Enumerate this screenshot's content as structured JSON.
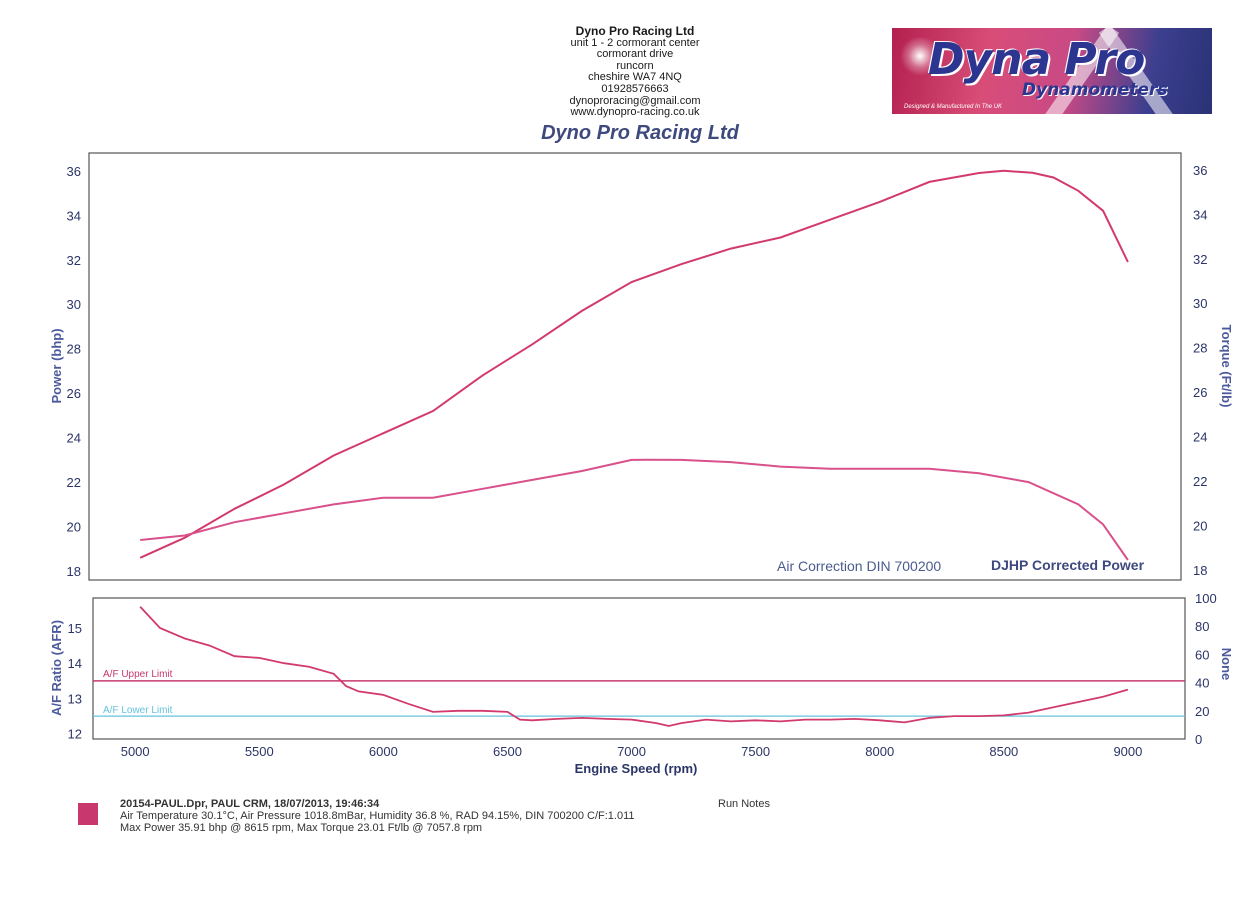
{
  "header": {
    "company": "Dyno Pro Racing Ltd",
    "address_lines": [
      "unit 1 - 2 cormorant center",
      "cormorant drive",
      "runcorn",
      "cheshire WA7 4NQ",
      "01928576663",
      "dynoproracing@gmail.com",
      "www.dynopro-racing.co.uk"
    ]
  },
  "logo": {
    "brand": "Dyna Pro",
    "subtitle": "Dynamometers",
    "tagline": "Designed & Manufactured In The UK"
  },
  "chart_title": "Dyno Pro Racing Ltd",
  "chart_data": [
    {
      "type": "line",
      "title": "Dyno Pro Racing Ltd",
      "xlabel": "Engine Speed (rpm)",
      "ylabel": "Power (bhp)",
      "y2label": "Torque (Ft/lb)",
      "xlim": [
        4830,
        9230
      ],
      "ylim": [
        17.6,
        36.8
      ],
      "y2lim": [
        17.6,
        36.8
      ],
      "y_ticks": [
        18,
        20,
        22,
        24,
        26,
        28,
        30,
        32,
        34,
        36
      ],
      "y2_ticks": [
        18,
        20,
        22,
        24,
        26,
        28,
        30,
        32,
        34,
        36
      ],
      "annotations": [
        "Air Correction DIN 700200",
        "DJHP Corrected Power"
      ],
      "series": [
        {
          "name": "Power",
          "color": "#d23a6c",
          "x": [
            5020,
            5200,
            5400,
            5600,
            5800,
            6000,
            6200,
            6400,
            6600,
            6800,
            7000,
            7200,
            7400,
            7600,
            7800,
            8000,
            8200,
            8400,
            8500,
            8615,
            8700,
            8800,
            8900,
            9000
          ],
          "y": [
            18.6,
            19.5,
            20.8,
            21.9,
            23.2,
            24.2,
            25.2,
            26.8,
            28.2,
            29.7,
            31.0,
            31.8,
            32.5,
            33.0,
            33.8,
            34.6,
            35.5,
            35.9,
            36.0,
            35.91,
            35.7,
            35.1,
            34.2,
            31.9
          ]
        },
        {
          "name": "Torque",
          "color": "#d9508a",
          "x": [
            5020,
            5200,
            5400,
            5600,
            5800,
            6000,
            6200,
            6400,
            6600,
            6800,
            7000,
            7058,
            7200,
            7400,
            7600,
            7800,
            8000,
            8200,
            8400,
            8600,
            8800,
            8900,
            9000
          ],
          "y": [
            19.4,
            19.6,
            20.2,
            20.6,
            21.0,
            21.3,
            21.3,
            21.7,
            22.1,
            22.5,
            23.0,
            23.01,
            23.0,
            22.9,
            22.7,
            22.6,
            22.6,
            22.6,
            22.4,
            22.0,
            21.0,
            20.1,
            18.5
          ]
        }
      ]
    },
    {
      "type": "line",
      "xlabel": "Engine Speed (rpm)",
      "ylabel": "A/F Ratio (AFR)",
      "y2label": "None",
      "xlim": [
        4830,
        9230
      ],
      "ylim": [
        11.85,
        15.85
      ],
      "y2lim": [
        0,
        100
      ],
      "x_ticks": [
        5000,
        5500,
        6000,
        6500,
        7000,
        7500,
        8000,
        8500,
        9000
      ],
      "y_ticks": [
        12,
        13,
        14,
        15
      ],
      "y2_ticks": [
        0,
        20,
        40,
        60,
        80,
        100
      ],
      "limits": [
        {
          "label": "A/F Upper Limit",
          "value": 13.5,
          "color": "#c8386e"
        },
        {
          "label": "A/F Lower Limit",
          "value": 12.5,
          "color": "#66c2dd"
        }
      ],
      "series": [
        {
          "name": "AFR",
          "color": "#d23a6c",
          "x": [
            5020,
            5100,
            5200,
            5300,
            5400,
            5500,
            5600,
            5700,
            5800,
            5850,
            5900,
            6000,
            6100,
            6200,
            6300,
            6400,
            6500,
            6550,
            6600,
            6700,
            6800,
            6900,
            7000,
            7100,
            7150,
            7200,
            7300,
            7400,
            7500,
            7600,
            7700,
            7800,
            7900,
            8000,
            8100,
            8200,
            8300,
            8400,
            8500,
            8600,
            8700,
            8800,
            8900,
            9000
          ],
          "y": [
            15.6,
            15.0,
            14.7,
            14.5,
            14.2,
            14.15,
            14.0,
            13.9,
            13.7,
            13.35,
            13.2,
            13.1,
            12.85,
            12.62,
            12.65,
            12.65,
            12.62,
            12.4,
            12.38,
            12.42,
            12.45,
            12.42,
            12.4,
            12.3,
            12.22,
            12.3,
            12.4,
            12.35,
            12.38,
            12.35,
            12.4,
            12.4,
            12.42,
            12.38,
            12.32,
            12.45,
            12.5,
            12.5,
            12.52,
            12.6,
            12.75,
            12.9,
            13.05,
            13.25
          ]
        }
      ]
    }
  ],
  "run_info": {
    "line1": "20154-PAUL.Dpr,   PAUL CRM,   18/07/2013,   19:46:34",
    "line2": "Air Temperature 30.1°C, Air Pressure 1018.8mBar, Humidity 36.8 %, RAD 94.15%,   DIN 700200  C/F:1.011",
    "line3": "Max Power 35.91 bhp @ 8615 rpm, Max Torque 23.01 Ft/lb @ 7057.8 rpm",
    "swatch_color": "#c8386e",
    "run_notes_label": "Run Notes"
  }
}
